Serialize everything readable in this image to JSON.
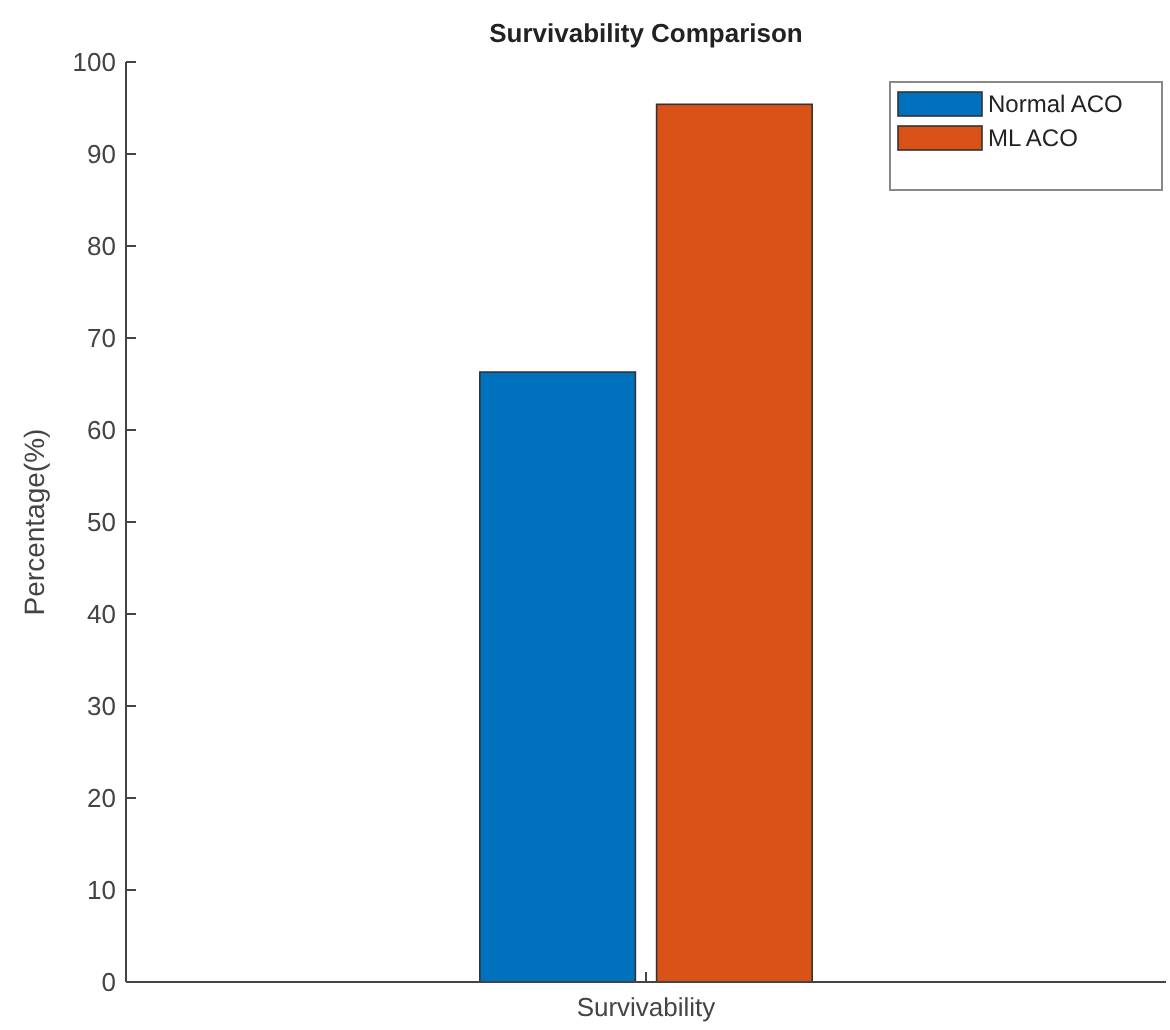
{
  "chart_data": {
    "type": "bar",
    "title": "Survivability Comparison",
    "ylabel": "Percentage(%)",
    "categories": [
      "Survivability"
    ],
    "series": [
      {
        "name": "Normal ACO",
        "color": "#0072bd",
        "values": [
          66.3
        ]
      },
      {
        "name": "ML ACO",
        "color": "#d95319",
        "values": [
          95.4
        ]
      }
    ],
    "ylim": [
      0,
      100
    ],
    "yticks": [
      0,
      10,
      20,
      30,
      40,
      50,
      60,
      70,
      80,
      90,
      100
    ],
    "grid": false,
    "legend": "top right"
  }
}
